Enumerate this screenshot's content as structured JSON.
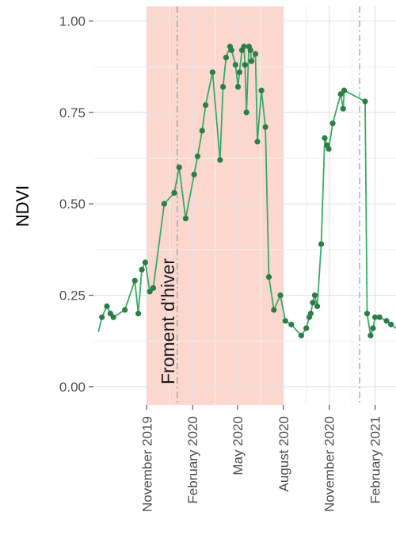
{
  "chart_data": {
    "type": "line",
    "ylabel": "NDVI",
    "xlabel": "",
    "title": "",
    "ylim": [
      -0.05,
      1.04
    ],
    "xlim": [
      "2019-07-17",
      "2021-03-15"
    ],
    "y_ticks": [
      {
        "value": 0.0,
        "label": "0.00"
      },
      {
        "value": 0.25,
        "label": "0.25"
      },
      {
        "value": 0.5,
        "label": "0.50"
      },
      {
        "value": 0.75,
        "label": "0.75"
      },
      {
        "value": 1.0,
        "label": "1.00"
      }
    ],
    "x_ticks": [
      {
        "date": "2019-11-01",
        "label": "November 2019"
      },
      {
        "date": "2020-02-01",
        "label": "February 2020"
      },
      {
        "date": "2020-05-01",
        "label": "May 2020"
      },
      {
        "date": "2020-08-01",
        "label": "August 2020"
      },
      {
        "date": "2020-11-01",
        "label": "November 2020"
      },
      {
        "date": "2021-02-01",
        "label": "February 2021"
      }
    ],
    "grid": true,
    "season_band": {
      "start": "2019-11-01",
      "end": "2020-08-01",
      "label": "Froment d'hiver",
      "color": "#f9c9bd"
    },
    "reference_lines": [
      "2020-01-01",
      "2021-01-01"
    ],
    "line_color": "#3aa96a",
    "point_color": "#2e7d46",
    "series": [
      {
        "x": [
          "2019-07-27",
          "2019-08-03",
          "2019-08-13",
          "2019-08-20",
          "2019-08-26",
          "2019-09-18",
          "2019-10-08",
          "2019-10-15",
          "2019-10-22",
          "2019-10-29",
          "2019-11-07",
          "2019-11-14",
          "2019-12-06",
          "2019-12-26",
          "2020-01-05",
          "2020-01-18",
          "2020-02-04",
          "2020-02-11",
          "2020-02-20",
          "2020-02-27",
          "2020-03-12",
          "2020-03-27",
          "2020-04-02",
          "2020-04-08",
          "2020-04-16",
          "2020-04-19",
          "2020-04-27",
          "2020-05-02",
          "2020-05-05",
          "2020-05-10",
          "2020-05-14",
          "2020-05-16",
          "2020-05-19",
          "2020-05-24",
          "2020-05-27",
          "2020-05-29",
          "2020-06-06",
          "2020-06-10",
          "2020-06-18",
          "2020-06-26",
          "2020-07-03",
          "2020-07-13",
          "2020-07-26",
          "2020-08-05",
          "2020-08-17",
          "2020-09-06",
          "2020-09-16",
          "2020-09-22",
          "2020-09-25",
          "2020-09-29",
          "2020-10-03",
          "2020-10-08",
          "2020-10-16",
          "2020-10-23",
          "2020-10-28",
          "2020-10-31",
          "2020-11-08",
          "2020-11-24",
          "2020-11-29",
          "2020-12-01",
          "2021-01-12",
          "2021-01-16",
          "2021-01-23",
          "2021-01-28",
          "2021-02-01",
          "2021-02-10",
          "2021-02-24",
          "2021-03-05",
          "2021-03-15"
        ],
        "y": [
          0.15,
          0.19,
          0.22,
          0.2,
          0.19,
          0.21,
          0.29,
          0.2,
          0.32,
          0.34,
          0.26,
          0.27,
          0.5,
          0.53,
          0.6,
          0.46,
          0.58,
          0.63,
          0.7,
          0.77,
          0.86,
          0.62,
          0.82,
          0.9,
          0.93,
          0.92,
          0.88,
          0.82,
          0.86,
          0.92,
          0.93,
          0.88,
          0.75,
          0.93,
          0.92,
          0.89,
          0.91,
          0.67,
          0.81,
          0.71,
          0.3,
          0.21,
          0.25,
          0.18,
          0.17,
          0.14,
          0.16,
          0.19,
          0.2,
          0.23,
          0.25,
          0.22,
          0.39,
          0.68,
          0.66,
          0.65,
          0.72,
          0.8,
          0.76,
          0.81,
          0.78,
          0.2,
          0.14,
          0.16,
          0.19,
          0.19,
          0.18,
          0.17,
          0.16
        ],
        "markers": [
          false,
          true,
          true,
          true,
          true,
          true,
          true,
          true,
          true,
          true,
          true,
          true,
          true,
          true,
          true,
          true,
          true,
          true,
          true,
          true,
          true,
          true,
          true,
          true,
          true,
          true,
          true,
          true,
          true,
          true,
          true,
          true,
          true,
          true,
          true,
          true,
          true,
          true,
          true,
          true,
          true,
          true,
          true,
          true,
          true,
          true,
          true,
          true,
          true,
          true,
          true,
          true,
          true,
          true,
          true,
          true,
          true,
          true,
          true,
          true,
          true,
          true,
          true,
          true,
          true,
          true,
          true,
          true,
          false
        ]
      }
    ]
  }
}
